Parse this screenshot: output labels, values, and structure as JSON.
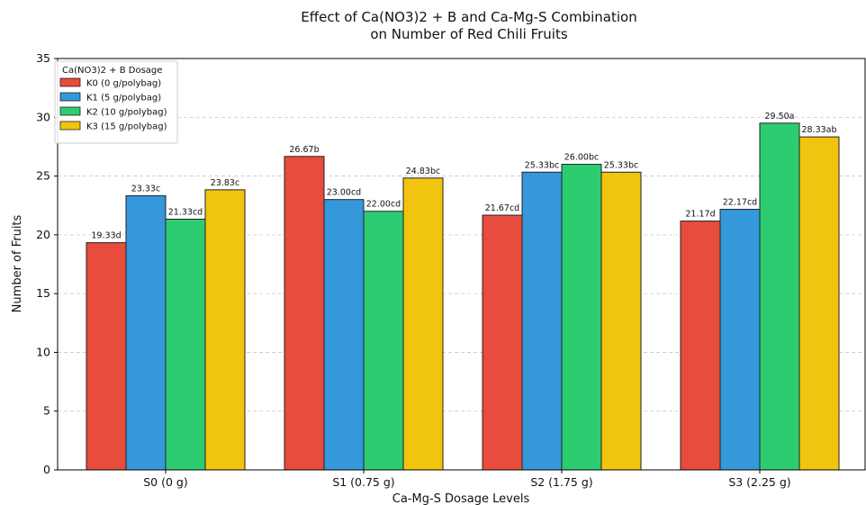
{
  "chart_data": {
    "type": "bar",
    "title_lines": [
      "Effect of Ca(NO3)2 + B and Ca-Mg-S Combination",
      "on Number of Red Chili Fruits"
    ],
    "xlabel": "Ca-Mg-S Dosage Levels",
    "ylabel": "Number of Fruits",
    "ylim": [
      0,
      35
    ],
    "yticks": [
      0,
      5,
      10,
      15,
      20,
      25,
      30,
      35
    ],
    "grid": "horizontal dashed",
    "categories": [
      "S0 (0 g)",
      "S1 (0.75 g)",
      "S2 (1.75 g)",
      "S3 (2.25 g)"
    ],
    "legend": {
      "title": "Ca(NO3)2 + B Dosage",
      "position": "top-left"
    },
    "series": [
      {
        "name": "K0 (0 g/polybag)",
        "color": "#e74c3c",
        "values": [
          19.33,
          26.67,
          21.67,
          21.17
        ],
        "labels": [
          "19.33d",
          "26.67b",
          "21.67cd",
          "21.17d"
        ]
      },
      {
        "name": "K1 (5 g/polybag)",
        "color": "#3498db",
        "values": [
          23.33,
          23.0,
          25.33,
          22.17
        ],
        "labels": [
          "23.33c",
          "23.00cd",
          "25.33bc",
          "22.17cd"
        ]
      },
      {
        "name": "K2 (10 g/polybag)",
        "color": "#2ecc71",
        "values": [
          21.33,
          22.0,
          26.0,
          29.5
        ],
        "labels": [
          "21.33cd",
          "22.00cd",
          "26.00bc",
          "29.50a"
        ]
      },
      {
        "name": "K3 (15 g/polybag)",
        "color": "#f1c40f",
        "values": [
          23.83,
          24.83,
          25.33,
          28.33
        ],
        "labels": [
          "23.83c",
          "24.83bc",
          "25.33bc",
          "28.33ab"
        ]
      }
    ]
  }
}
